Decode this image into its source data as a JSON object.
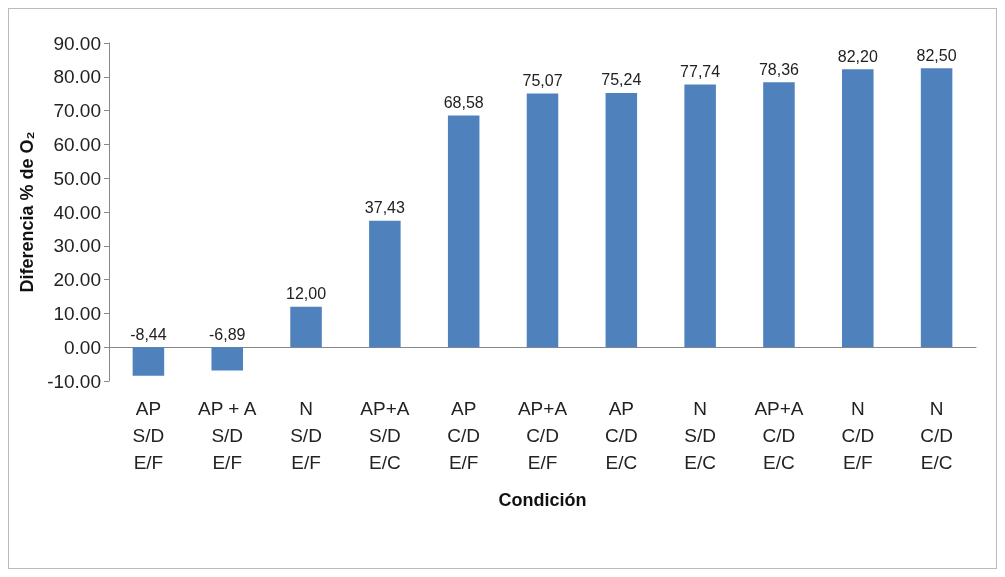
{
  "chart_data": {
    "type": "bar",
    "xlabel": "Condición",
    "ylabel": "Diferencia % de O₂",
    "categories": [
      "AP\nS/D\nE/F",
      "AP + A\nS/D\nE/F",
      "N\nS/D\nE/F",
      "AP+A\nS/D\nE/C",
      "AP\nC/D\nE/F",
      "AP+A\nC/D\nE/F",
      "AP\nC/D\nE/C",
      "N\nS/D\nE/C",
      "AP+A\nC/D\nE/C",
      "N\nC/D\nE/F",
      "N\nC/D\nE/C"
    ],
    "values": [
      -8.44,
      -6.89,
      12.0,
      37.43,
      68.58,
      75.07,
      75.24,
      77.74,
      78.36,
      82.2,
      82.5
    ],
    "value_labels": [
      "-8,44",
      "-6,89",
      "12,00",
      "37,43",
      "68,58",
      "75,07",
      "75,24",
      "77,74",
      "78,36",
      "82,20",
      "82,50"
    ],
    "color": "#4f81bd",
    "ylim": [
      -10,
      90
    ],
    "yticks": [
      {
        "value": -10,
        "label": "-10.00"
      },
      {
        "value": 0,
        "label": "0.00"
      },
      {
        "value": 10,
        "label": "10.00"
      },
      {
        "value": 20,
        "label": "20.00"
      },
      {
        "value": 30,
        "label": "30.00"
      },
      {
        "value": 40,
        "label": "40.00"
      },
      {
        "value": 50,
        "label": "50.00"
      },
      {
        "value": 60,
        "label": "60.00"
      },
      {
        "value": 70,
        "label": "70.00"
      },
      {
        "value": 80,
        "label": "80.00"
      },
      {
        "value": 90,
        "label": "90.00"
      }
    ]
  }
}
